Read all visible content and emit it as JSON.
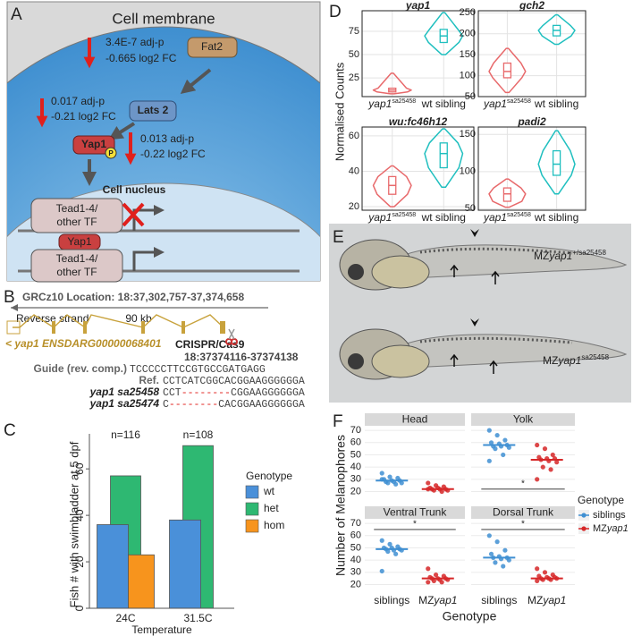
{
  "panel_labels": [
    "A",
    "B",
    "C",
    "D",
    "E",
    "F"
  ],
  "pathway": {
    "title": "Cell membrane",
    "fat2": {
      "name": "Fat2",
      "stat": [
        "3.4E-7 adj-p",
        "-0.665 log2 FC"
      ]
    },
    "lats2": {
      "name": "Lats 2",
      "stat": [
        "0.017 adj-p",
        "-0.21 log2 FC"
      ]
    },
    "yap1": {
      "name": "Yap1",
      "phospho": "P",
      "stat": [
        "0.013 adj-p",
        "-0.22 log2 FC"
      ]
    },
    "nucleus": "Cell nucleus",
    "tf_blocked": [
      "Tead1-4/",
      "other TF"
    ],
    "yap1_bound": "Yap1",
    "tf_active": [
      "Tead1-4/",
      "other TF"
    ]
  },
  "locus": {
    "location": "GRCz10 Location: 18:37,302,757-37,374,658",
    "strand": "Reverse strand",
    "scale": "90 kb",
    "gene": "< yap1 ENSDARG00000068401",
    "tool": "CRISPR/Cas9",
    "target": "18:37374116-37374138",
    "alignment": [
      {
        "label": "Guide (rev. comp.)",
        "sequence": [
          "TCCCCCTTCCGTGCCGATGAGG"
        ]
      },
      {
        "label": "Ref.",
        "sequence": [
          "CCTCATCGGCACGGAAGGGGGGA"
        ]
      },
      {
        "label": "yap1 sa25458",
        "sequence": [
          "CCT",
          "--------",
          "CGGAAGGGGGGA"
        ]
      },
      {
        "label": "yap1 sa25474",
        "sequence": [
          "C",
          "--------",
          "CACGGAAGGGGGGA"
        ]
      }
    ]
  },
  "embryos": {
    "labels": [
      {
        "prefix": "MZ",
        "gene": "yap1",
        "allele": "+/sa25458"
      },
      {
        "prefix": "MZ",
        "gene": "yap1",
        "allele": "sa25458"
      }
    ]
  },
  "chart_data": [
    {
      "type": "bar",
      "y_label": "Fish # with swimbladder at 5 dpf",
      "x_label": "Temperature",
      "categories": [
        "24C",
        "31.5C"
      ],
      "annotations": [
        "n=116",
        "n=108"
      ],
      "series": [
        {
          "name": "wt",
          "color": "#4a90d9",
          "values": [
            36,
            38
          ]
        },
        {
          "name": "het",
          "color": "#2eb872",
          "values": [
            57,
            70
          ]
        },
        {
          "name": "hom",
          "color": "#f7941d",
          "values": [
            23,
            null
          ]
        }
      ],
      "ylim": [
        0,
        72
      ],
      "yticks": [
        0,
        20,
        40,
        60
      ],
      "legend_title": "Genotype",
      "legend": "right"
    },
    {
      "type": "violin",
      "y_label": "Normalised Counts",
      "categories": [
        "yap1",
        "wt sibling"
      ],
      "superscripts": [
        "sa25458",
        null
      ],
      "colors": [
        "#e8696b",
        "#1fbfbf"
      ],
      "panels": [
        {
          "title": "yap1",
          "ylim": [
            5,
            97
          ],
          "yticks": [
            25,
            50,
            75
          ],
          "stats": [
            {
              "min": 8,
              "q1": 10,
              "median": 12,
              "q3": 14,
              "max": 30
            },
            {
              "min": 50,
              "q1": 63,
              "median": 70,
              "q3": 77,
              "max": 95
            }
          ]
        },
        {
          "title": "gch2",
          "ylim": [
            50,
            255
          ],
          "yticks": [
            50,
            100,
            150,
            200,
            250
          ],
          "stats": [
            {
              "min": 60,
              "q1": 95,
              "median": 110,
              "q3": 130,
              "max": 165
            },
            {
              "min": 175,
              "q1": 195,
              "median": 208,
              "q3": 220,
              "max": 245
            }
          ]
        },
        {
          "title": "wu:fc46h12",
          "ylim": [
            18,
            65
          ],
          "yticks": [
            20,
            40,
            60
          ],
          "stats": [
            {
              "min": 20,
              "q1": 27,
              "median": 32,
              "q3": 37,
              "max": 43
            },
            {
              "min": 31,
              "q1": 42,
              "median": 50,
              "q3": 56,
              "max": 64
            }
          ]
        },
        {
          "title": "padi2",
          "ylim": [
            48,
            160
          ],
          "yticks": [
            50,
            100,
            150
          ],
          "stats": [
            {
              "min": 52,
              "q1": 60,
              "median": 70,
              "q3": 78,
              "max": 90
            },
            {
              "min": 70,
              "q1": 95,
              "median": 110,
              "q3": 128,
              "max": 155
            }
          ]
        }
      ]
    },
    {
      "type": "strip",
      "y_label": "Number of Melanophores",
      "x_label": "Genotype",
      "legend_title": "Genotype",
      "categories": [
        {
          "text": "siblings"
        },
        {
          "text": "MZ",
          "italic": "yap1"
        }
      ],
      "colors": [
        "#3f8fd2",
        "#d62728"
      ],
      "ylim": [
        16,
        73
      ],
      "yticks": [
        20,
        30,
        40,
        50,
        60,
        70
      ],
      "panels": [
        {
          "title": "Head",
          "values": [
            [
              35,
              32,
              31,
              30,
              29,
              29,
              28,
              28,
              27,
              27,
              26,
              30
            ],
            [
              27,
              25,
              24,
              23,
              23,
              22,
              22,
              22,
              21,
              21,
              20,
              22
            ]
          ],
          "medians": [
            29,
            22
          ]
        },
        {
          "title": "Yolk",
          "values": [
            [
              70,
              66,
              62,
              60,
              59,
              58,
              57,
              57,
              56,
              55,
              50,
              45
            ],
            [
              58,
              55,
              50,
              48,
              47,
              47,
              46,
              45,
              44,
              40,
              38,
              30
            ]
          ],
          "medians": [
            58,
            46
          ],
          "significance": {
            "y": 22,
            "label": "*"
          }
        },
        {
          "title": "Ventral Trunk",
          "values": [
            [
              56,
              53,
              51,
              50,
              50,
              49,
              49,
              48,
              48,
              47,
              45,
              31
            ],
            [
              33,
              28,
              27,
              26,
              25,
              25,
              25,
              24,
              24,
              23,
              22,
              22
            ]
          ],
          "medians": [
            49,
            25
          ],
          "significance": {
            "y": 65,
            "label": "*"
          }
        },
        {
          "title": "Dorsal Trunk",
          "values": [
            [
              60,
              55,
              48,
              45,
              43,
              42,
              42,
              41,
              40,
              38,
              35
            ],
            [
              33,
              30,
              28,
              27,
              26,
              26,
              25,
              25,
              25,
              24,
              24,
              23
            ]
          ],
          "medians": [
            42,
            25
          ],
          "significance": {
            "y": 65,
            "label": "*"
          }
        }
      ]
    }
  ]
}
